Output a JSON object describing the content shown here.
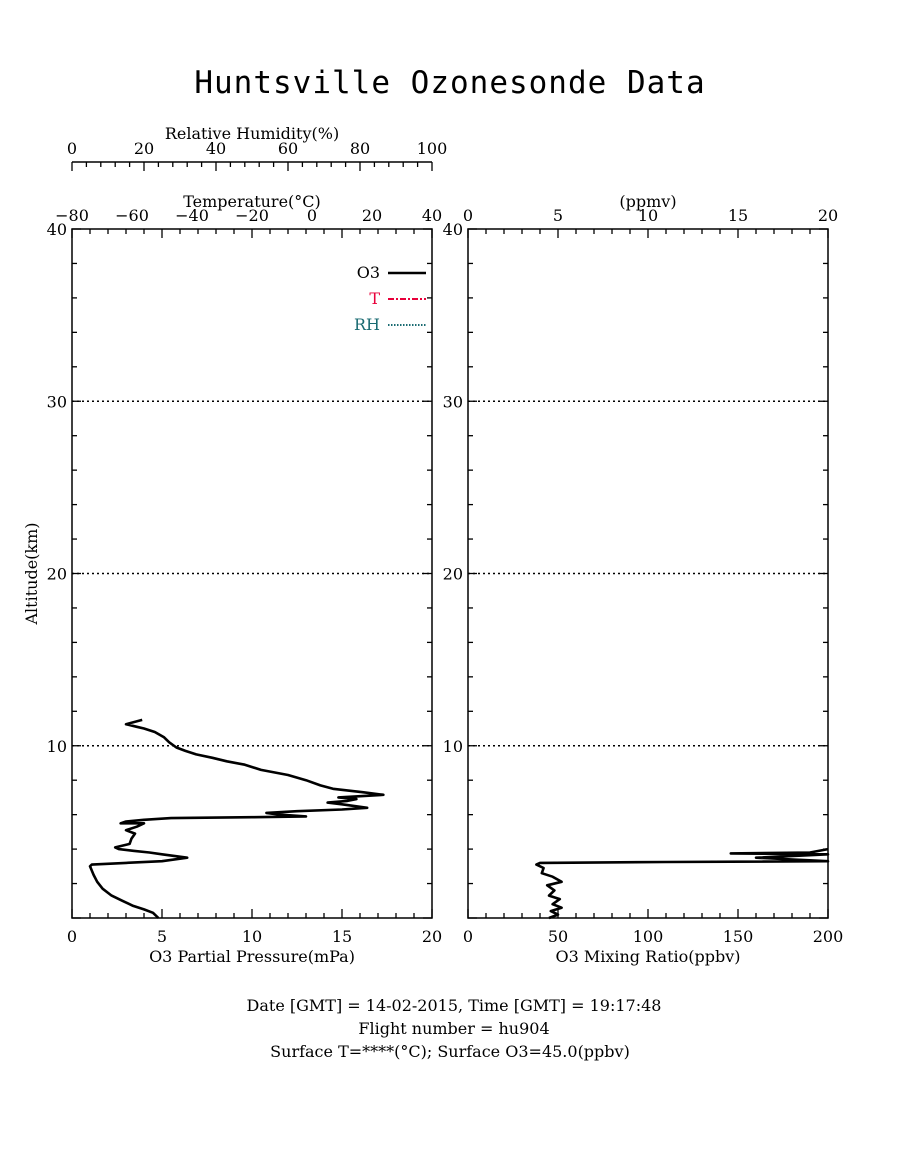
{
  "title": "Huntsville Ozonesonde Data",
  "footer": {
    "line1": "Date [GMT] = 14-02-2015,  Time [GMT] = 19:17:48",
    "line2": "Flight number = hu904",
    "line3": "Surface T=****(°C); Surface O3=45.0(ppbv)"
  },
  "chart_data": [
    {
      "type": "line",
      "panel": "left",
      "xlabel": "O3 Partial Pressure(mPa)",
      "ylabel": "Altitude(km)",
      "xlim": [
        0,
        20
      ],
      "ylim": [
        0,
        40
      ],
      "xticks": [
        "0",
        "5",
        "10",
        "15",
        "20"
      ],
      "yticks": [
        "10",
        "20",
        "30",
        "40"
      ],
      "top_axis_1": {
        "label": "Temperature(°C)",
        "range": [
          -80,
          40
        ],
        "ticks": [
          "−80",
          "−60",
          "−40",
          "−20",
          "0",
          "20",
          "40"
        ]
      },
      "top_axis_2": {
        "label": "Relative Humidity(%)",
        "range": [
          0,
          100
        ],
        "ticks": [
          "0",
          "20",
          "40",
          "60",
          "80",
          "100"
        ]
      },
      "gridlines_y": [
        10,
        20,
        30
      ],
      "legend": [
        {
          "name": "O3",
          "color": "#000000",
          "style": "solid"
        },
        {
          "name": "T",
          "color": "#e8003a",
          "style": "dash-dot"
        },
        {
          "name": "RH",
          "color": "#1a6b72",
          "style": "dotted"
        }
      ],
      "series": [
        {
          "name": "O3",
          "points": [
            [
              4.8,
              0.0
            ],
            [
              4.5,
              0.3
            ],
            [
              4.0,
              0.5
            ],
            [
              3.4,
              0.7
            ],
            [
              2.8,
              1.0
            ],
            [
              2.2,
              1.3
            ],
            [
              1.7,
              1.7
            ],
            [
              1.4,
              2.1
            ],
            [
              1.2,
              2.5
            ],
            [
              1.0,
              3.0
            ],
            [
              1.1,
              3.1
            ],
            [
              3.0,
              3.2
            ],
            [
              5.0,
              3.3
            ],
            [
              6.4,
              3.5
            ],
            [
              5.0,
              3.7
            ],
            [
              4.3,
              3.8
            ],
            [
              3.4,
              3.9
            ],
            [
              2.6,
              4.0
            ],
            [
              2.4,
              4.1
            ],
            [
              3.2,
              4.3
            ],
            [
              3.3,
              4.6
            ],
            [
              3.5,
              4.9
            ],
            [
              3.0,
              5.1
            ],
            [
              3.6,
              5.3
            ],
            [
              4.0,
              5.5
            ],
            [
              2.7,
              5.5
            ],
            [
              3.0,
              5.6
            ],
            [
              4.0,
              5.7
            ],
            [
              5.5,
              5.8
            ],
            [
              10.0,
              5.85
            ],
            [
              13.0,
              5.9
            ],
            [
              11.5,
              6.0
            ],
            [
              10.8,
              6.1
            ],
            [
              12.5,
              6.2
            ],
            [
              15.0,
              6.3
            ],
            [
              16.4,
              6.4
            ],
            [
              15.0,
              6.6
            ],
            [
              14.2,
              6.7
            ],
            [
              15.3,
              6.8
            ],
            [
              15.8,
              6.9
            ],
            [
              14.8,
              7.0
            ],
            [
              16.5,
              7.1
            ],
            [
              17.3,
              7.15
            ],
            [
              16.2,
              7.3
            ],
            [
              14.5,
              7.5
            ],
            [
              13.8,
              7.7
            ],
            [
              13.0,
              8.0
            ],
            [
              12.0,
              8.3
            ],
            [
              10.5,
              8.6
            ],
            [
              9.6,
              8.9
            ],
            [
              8.6,
              9.1
            ],
            [
              7.8,
              9.3
            ],
            [
              6.9,
              9.5
            ],
            [
              6.3,
              9.7
            ],
            [
              5.8,
              9.9
            ],
            [
              5.4,
              10.2
            ],
            [
              5.1,
              10.5
            ],
            [
              4.6,
              10.8
            ],
            [
              4.0,
              11.0
            ],
            [
              3.6,
              11.1
            ],
            [
              3.0,
              11.25
            ],
            [
              3.9,
              11.5
            ]
          ]
        }
      ]
    },
    {
      "type": "line",
      "panel": "right",
      "xlabel": "O3 Mixing Ratio(ppbv)",
      "ylabel": "",
      "xlim": [
        0,
        200
      ],
      "ylim": [
        0,
        40
      ],
      "xticks": [
        "0",
        "50",
        "100",
        "150",
        "200"
      ],
      "yticks": [
        "10",
        "20",
        "30",
        "40"
      ],
      "top_axis": {
        "label": "(ppmv)",
        "range": [
          0,
          20
        ],
        "ticks": [
          "0",
          "5",
          "10",
          "15",
          "20"
        ]
      },
      "gridlines_y": [
        10,
        20,
        30
      ],
      "series": [
        {
          "name": "O3",
          "points": [
            [
              45,
              0.0
            ],
            [
              50,
              0.2
            ],
            [
              46,
              0.4
            ],
            [
              52,
              0.6
            ],
            [
              47,
              0.8
            ],
            [
              51,
              1.1
            ],
            [
              45,
              1.3
            ],
            [
              48,
              1.6
            ],
            [
              44,
              1.9
            ],
            [
              52,
              2.1
            ],
            [
              47,
              2.4
            ],
            [
              41,
              2.6
            ],
            [
              42,
              2.9
            ],
            [
              38,
              3.1
            ],
            [
              40,
              3.2
            ],
            [
              110,
              3.25
            ],
            [
              200,
              3.3
            ],
            [
              160,
              3.5
            ],
            [
              200,
              3.7
            ],
            [
              146,
              3.75
            ],
            [
              190,
              3.8
            ],
            [
              200,
              4.0
            ]
          ]
        }
      ]
    }
  ]
}
